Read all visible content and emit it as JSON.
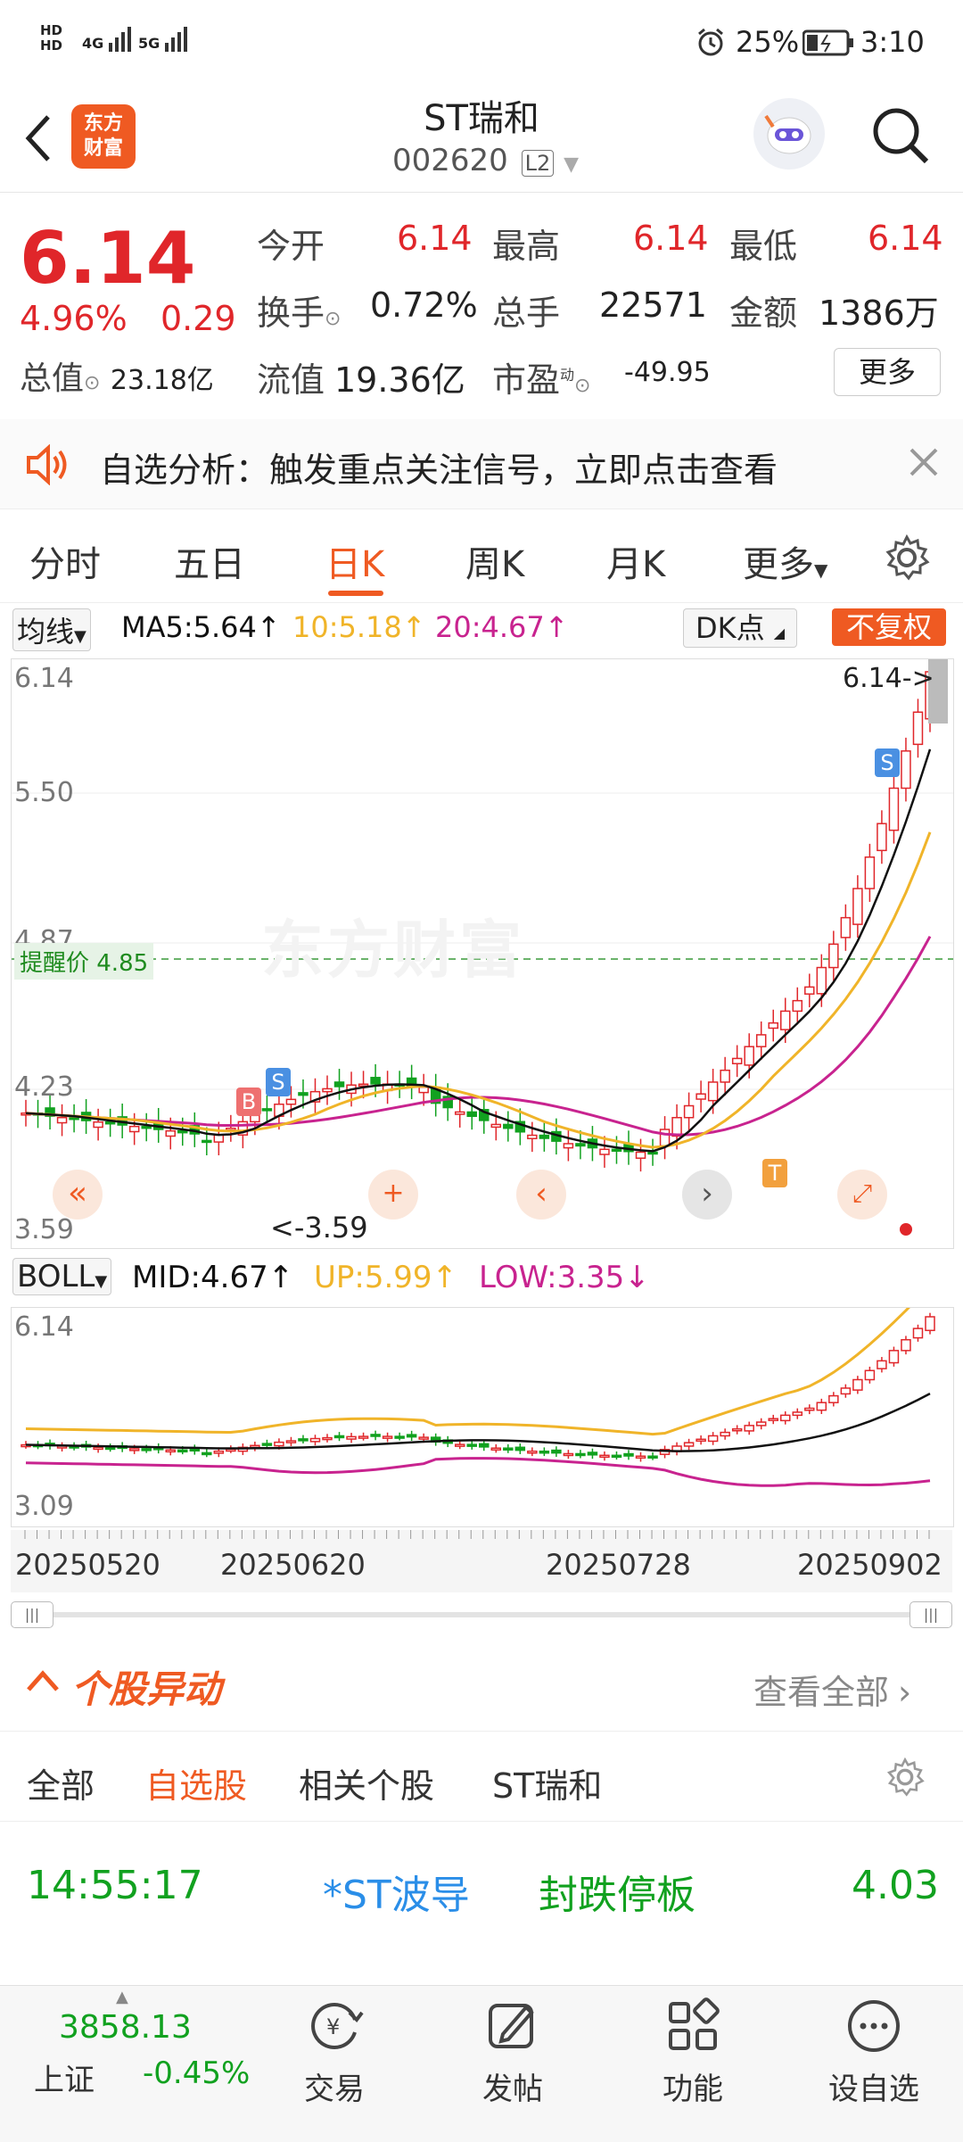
{
  "status_bar": {
    "net_top": "HD",
    "net_bottom": "HD",
    "sig1": "4G",
    "sig2": "5G",
    "battery": "25%",
    "time": "3:10"
  },
  "header": {
    "logo_line1": "东方",
    "logo_line2": "财富",
    "stock_name": "ST瑞和",
    "stock_code": "002620",
    "level_badge": "L2"
  },
  "quote": {
    "price": "6.14",
    "change_pct": "4.96%",
    "change_amt": "0.29",
    "market_cap_label": "总值",
    "market_cap": "23.18亿",
    "open_label": "今开",
    "open": "6.14",
    "high_label": "最高",
    "high": "6.14",
    "low_label": "最低",
    "low": "6.14",
    "turnover_label": "换手",
    "turnover": "0.72%",
    "volume_label": "总手",
    "volume": "22571",
    "amount_label": "金额",
    "amount": "1386万",
    "float_cap_label": "流值",
    "float_cap": "19.36亿",
    "pe_label": "市盈",
    "pe_sup": "动",
    "pe": "-49.95",
    "more_button": "更多"
  },
  "notice": {
    "text": "自选分析：触发重点关注信号，立即点击查看"
  },
  "tabs": [
    {
      "label": "分时"
    },
    {
      "label": "五日"
    },
    {
      "label": "日K"
    },
    {
      "label": "周K"
    },
    {
      "label": "月K"
    },
    {
      "label": "更多"
    }
  ],
  "ma_row": {
    "select": "均线",
    "ma5": "MA5:5.64",
    "ma10": "10:5.18",
    "ma20": "20:4.67",
    "dk_button": "DK点",
    "fq_button": "不复权"
  },
  "main_chart": {
    "y_top": "6.14",
    "y_550": "5.50",
    "y_487": "4.87",
    "y_423": "4.23",
    "y_bottom": "3.59",
    "last_price_tag": "6.14->",
    "alert_label": "提醒价 4.85",
    "min_label": "<-3.59",
    "watermark": "东方财富",
    "marker_b": "B",
    "marker_s": "S",
    "marker_s2": "S",
    "marker_t": "T"
  },
  "boll_row": {
    "select": "BOLL",
    "mid": "MID:4.67",
    "up": "UP:5.99",
    "low": "LOW:3.35"
  },
  "sub_chart": {
    "y_top": "6.14",
    "y_bottom": "3.09"
  },
  "dates": [
    "20250520",
    "20250620",
    "20250728",
    "20250902"
  ],
  "movement": {
    "title": "个股异动",
    "view_all": "查看全部",
    "tabs": [
      {
        "label": "全部"
      },
      {
        "label": "自选股"
      },
      {
        "label": "相关个股"
      },
      {
        "label": "ST瑞和"
      }
    ],
    "row": {
      "time": "14:55:17",
      "name": "*ST波导",
      "event": "封跌停板",
      "value": "4.03"
    }
  },
  "bottom_bar": {
    "index_value": "3858.13",
    "index_name": "上证",
    "index_change": "-0.45%",
    "items": [
      {
        "label": "交易"
      },
      {
        "label": "发帖"
      },
      {
        "label": "功能"
      },
      {
        "label": "设自选"
      }
    ]
  },
  "colors": {
    "up": "#e0262a",
    "down": "#11a11f",
    "ma5": "#111111",
    "ma10": "#f0b429",
    "ma20": "#c8238f",
    "accent": "#ef5a22",
    "link": "#2a8ee8"
  }
}
